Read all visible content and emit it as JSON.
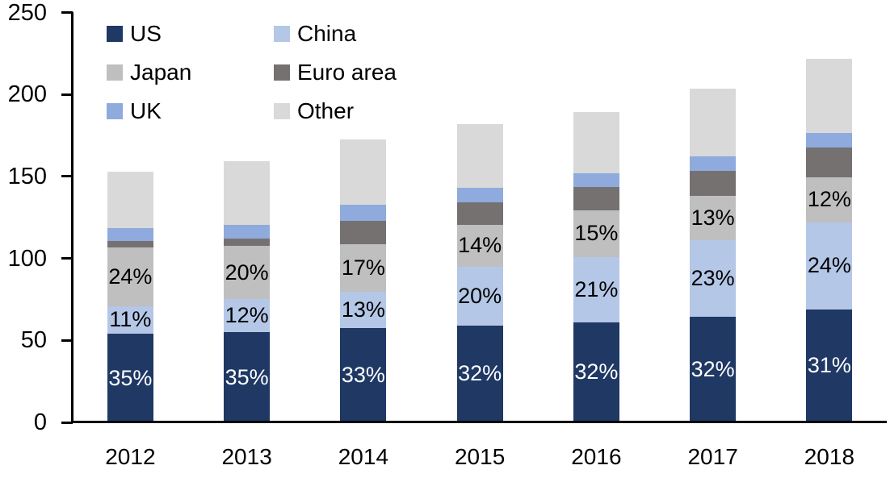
{
  "chart_data": {
    "type": "bar",
    "variant": "stacked-column",
    "title": "",
    "xlabel": "",
    "ylabel": "",
    "categories": [
      "2012",
      "2013",
      "2014",
      "2015",
      "2016",
      "2017",
      "2018"
    ],
    "series": [
      {
        "name": "US",
        "color": "#1F3864",
        "values": [
          54,
          55,
          57.5,
          59,
          61,
          64.5,
          69
        ],
        "labels": [
          "35%",
          "35%",
          "33%",
          "32%",
          "32%",
          "32%",
          "31%"
        ],
        "label_color": "#FFFFFF"
      },
      {
        "name": "China",
        "color": "#B4C7E7",
        "values": [
          17,
          20,
          22,
          36,
          40,
          46.5,
          53
        ],
        "labels": [
          "11%",
          "12%",
          "13%",
          "20%",
          "21%",
          "23%",
          "24%"
        ],
        "label_color": "#000000"
      },
      {
        "name": "Japan",
        "color": "#BFBFBF",
        "values": [
          35.5,
          32.5,
          29,
          25.5,
          28.5,
          27,
          27.5
        ],
        "labels": [
          "24%",
          "20%",
          "17%",
          "14%",
          "15%",
          "13%",
          "12%"
        ],
        "label_color": "#000000"
      },
      {
        "name": "Euro area",
        "color": "#767171",
        "values": [
          4,
          4.5,
          14.5,
          13.5,
          14,
          15.5,
          18
        ]
      },
      {
        "name": "UK",
        "color": "#8FAADC",
        "values": [
          8,
          8.5,
          9.5,
          9,
          8.5,
          8.5,
          9
        ]
      },
      {
        "name": "Other",
        "color": "#D9D9D9",
        "values": [
          34.5,
          39,
          40,
          39,
          37.5,
          41.5,
          45
        ]
      }
    ],
    "totals": [
      153,
      159.5,
      172.5,
      182,
      189.5,
      203.5,
      221.5
    ],
    "ylim": [
      0,
      250
    ],
    "yticks": [
      0,
      50,
      100,
      150,
      200,
      250
    ],
    "gridlines": false,
    "legend_position": "top-left",
    "legend_columns": 2,
    "axis_color": "#000000",
    "text_color": "#000000"
  }
}
